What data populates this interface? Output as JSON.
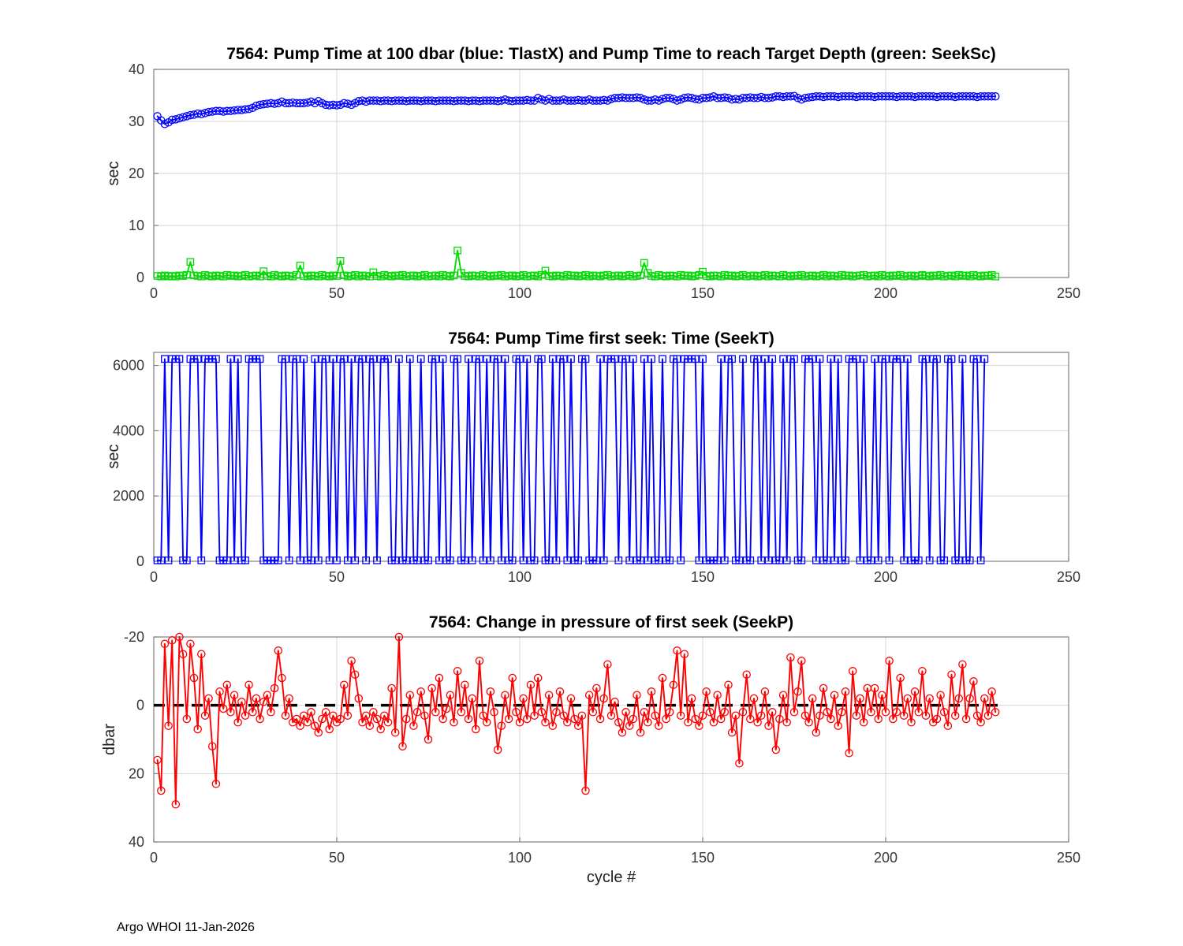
{
  "page": {
    "footer": "Argo WHOI 11-Jan-2026",
    "background": "#ffffff"
  },
  "colors": {
    "grid": "#d6d6d6",
    "axis": "#808080",
    "tick_label": "#383838",
    "title": "#000000",
    "zero_line": "#000000"
  },
  "chart_data": [
    {
      "type": "line",
      "title": "7564:  Pump Time at 100 dbar (blue: TlastX) and Pump Time to reach Target Depth (green: SeekSc)",
      "ylabel": "sec",
      "xlim": [
        0,
        250
      ],
      "ylim": [
        0,
        40
      ],
      "xticks": [
        0,
        50,
        100,
        150,
        200,
        250
      ],
      "yticks": [
        0,
        10,
        20,
        30,
        40
      ],
      "grid": true,
      "series": [
        {
          "name": "TlastX",
          "color": "#0000ff",
          "marker": "circle",
          "x_start": 1,
          "values": [
            31,
            30.2,
            29.5,
            29.8,
            30.3,
            30.4,
            30.6,
            30.8,
            31,
            31.2,
            31.3,
            31.5,
            31.4,
            31.6,
            31.8,
            31.9,
            32,
            32,
            31.9,
            32,
            32,
            32.1,
            32.2,
            32.2,
            32.3,
            32.4,
            32.6,
            33,
            33.2,
            33.3,
            33.4,
            33.5,
            33.4,
            33.5,
            33.8,
            33.5,
            33.5,
            33.6,
            33.5,
            33.5,
            33.5,
            33.6,
            33.8,
            33.5,
            33.9,
            33.5,
            33.2,
            33.1,
            33.2,
            33.1,
            33.2,
            33.5,
            33.4,
            33.2,
            33.5,
            33.9,
            34,
            33.8,
            34,
            34,
            34,
            33.9,
            34,
            34,
            33.9,
            34,
            34,
            34,
            33.9,
            34,
            34,
            34,
            33.9,
            34,
            34,
            34,
            33.9,
            34,
            34,
            34,
            34,
            33.9,
            34,
            34,
            34,
            33.9,
            34,
            34,
            33.9,
            34,
            34,
            34,
            34,
            33.9,
            34,
            34.2,
            34,
            33.9,
            34,
            34,
            34,
            34.1,
            34,
            34,
            34.5,
            34.2,
            34,
            34.3,
            34,
            34,
            34,
            34.2,
            34,
            34,
            34,
            34.1,
            34,
            34,
            34.2,
            34,
            34,
            34,
            34.1,
            34,
            34.3,
            34.5,
            34.5,
            34.6,
            34.5,
            34.5,
            34.5,
            34.6,
            34.5,
            34.2,
            34,
            34,
            34.2,
            34,
            34.3,
            34.5,
            34.5,
            34.3,
            34,
            34.2,
            34.5,
            34.6,
            34.5,
            34.3,
            34.2,
            34.5,
            34.5,
            34.6,
            34.8,
            34.5,
            34.5,
            34.6,
            34.5,
            34.2,
            34.3,
            34.2,
            34.5,
            34.5,
            34.6,
            34.5,
            34.5,
            34.7,
            34.5,
            34.5,
            34.6,
            34.8,
            34.8,
            34.7,
            34.8,
            34.8,
            34.9,
            34.5,
            34.2,
            34.5,
            34.6,
            34.7,
            34.8,
            34.8,
            34.7,
            34.8,
            34.8,
            34.8,
            34.7,
            34.8,
            34.8,
            34.8,
            34.8,
            34.7,
            34.8,
            34.8,
            34.8,
            34.8,
            34.7,
            34.8,
            34.8,
            34.8,
            34.8,
            34.8,
            34.7,
            34.8,
            34.8,
            34.8,
            34.8,
            34.7,
            34.8,
            34.8,
            34.8,
            34.8,
            34.8,
            34.7,
            34.8,
            34.8,
            34.8,
            34.8,
            34.7,
            34.8,
            34.8,
            34.8,
            34.8,
            34.8,
            34.7,
            34.8,
            34.8,
            34.8,
            34.8,
            34.8
          ]
        },
        {
          "name": "SeekSc",
          "color": "#00dd00",
          "marker": "square",
          "x_start": 1,
          "values": [
            0.3,
            0.2,
            0.4,
            0.2,
            0.3,
            0.2,
            0.4,
            0.3,
            0.5,
            3,
            0.4,
            0.3,
            0.2,
            0.5,
            0.3,
            0.2,
            0.4,
            0.3,
            0.2,
            0.5,
            0.3,
            0.4,
            0.2,
            0.3,
            0.5,
            0.2,
            0.3,
            0.4,
            0.2,
            1.2,
            0.3,
            0.2,
            0.5,
            0.3,
            0.2,
            0.4,
            0.3,
            0.2,
            0.5,
            2.3,
            0.3,
            0.2,
            0.4,
            0.3,
            0.2,
            0.5,
            0.3,
            0.2,
            0.4,
            0.3,
            3.2,
            0.4,
            0.2,
            0.3,
            0.5,
            0.2,
            0.4,
            0.3,
            0.2,
            1,
            0.3,
            0.2,
            0.5,
            0.3,
            0.2,
            0.4,
            0.3,
            0.5,
            0.2,
            0.3,
            0.4,
            0.2,
            0.3,
            0.5,
            0.2,
            0.3,
            0.4,
            0.2,
            0.5,
            0.3,
            0.2,
            0.4,
            5.2,
            0.9,
            0.3,
            0.2,
            0.4,
            0.3,
            0.2,
            0.5,
            0.3,
            0.2,
            0.4,
            0.3,
            0.5,
            0.2,
            0.3,
            0.4,
            0.2,
            0.3,
            0.5,
            0.2,
            0.3,
            0.4,
            0.2,
            0.5,
            1.3,
            0.3,
            0.2,
            0.4,
            0.3,
            0.2,
            0.5,
            0.3,
            0.4,
            0.2,
            0.3,
            0.5,
            0.2,
            0.4,
            0.3,
            0.2,
            0.4,
            0.5,
            0.2,
            0.3,
            0.4,
            0.2,
            0.3,
            0.5,
            0.2,
            0.3,
            0.4,
            2.8,
            0.9,
            0.3,
            0.2,
            0.5,
            0.3,
            0.2,
            0.4,
            0.3,
            0.2,
            0.5,
            0.3,
            0.4,
            0.2,
            0.3,
            0.5,
            1.1,
            0.3,
            0.2,
            0.4,
            0.3,
            0.2,
            0.5,
            0.3,
            0.4,
            0.2,
            0.3,
            0.5,
            0.2,
            0.3,
            0.4,
            0.2,
            0.3,
            0.5,
            0.2,
            0.4,
            0.3,
            0.2,
            0.5,
            0.3,
            0.2,
            0.4,
            0.3,
            0.5,
            0.2,
            0.3,
            0.4,
            0.2,
            0.3,
            0.5,
            0.2,
            0.4,
            0.3,
            0.2,
            0.5,
            0.3,
            0.4,
            0.2,
            0.3,
            0.4,
            0.5,
            0.2,
            0.3,
            0.4,
            0.2,
            0.5,
            0.3,
            0.2,
            0.4,
            0.3,
            0.5,
            0.2,
            0.3,
            0.4,
            0.2,
            0.3,
            0.5,
            0.3,
            0.2,
            0.4,
            0.3,
            0.5,
            0.2,
            0.3,
            0.4,
            0.2,
            0.5,
            0.3,
            0.4,
            0.2,
            0.5,
            0.3,
            0.2,
            0.4,
            0.3,
            0.5,
            0.2
          ]
        }
      ]
    },
    {
      "type": "line",
      "title": "7564: Pump Time first seek: Time (SeekT)",
      "ylabel": "sec",
      "xlim": [
        0,
        250
      ],
      "ylim": [
        0,
        6400
      ],
      "xticks": [
        0,
        50,
        100,
        150,
        200,
        250
      ],
      "yticks": [
        0,
        2000,
        4000,
        6000
      ],
      "grid": true,
      "series": [
        {
          "name": "SeekT",
          "color": "#0000ff",
          "marker": "square",
          "x_start": 1,
          "values": [
            30,
            30,
            6200,
            30,
            6200,
            6200,
            6200,
            30,
            30,
            6200,
            6200,
            6200,
            30,
            6200,
            6200,
            6200,
            6200,
            30,
            30,
            30,
            6200,
            30,
            6200,
            30,
            30,
            6200,
            6200,
            6200,
            6200,
            30,
            30,
            30,
            30,
            30,
            6200,
            6200,
            30,
            6200,
            6200,
            30,
            6200,
            30,
            30,
            6200,
            30,
            6200,
            6200,
            30,
            6200,
            30,
            6200,
            6200,
            30,
            6200,
            30,
            6200,
            6200,
            30,
            6200,
            6200,
            30,
            6200,
            6200,
            6200,
            30,
            30,
            6200,
            30,
            30,
            6200,
            30,
            30,
            6200,
            30,
            30,
            6200,
            6200,
            30,
            6200,
            30,
            30,
            6200,
            6200,
            30,
            30,
            6200,
            30,
            6200,
            6200,
            30,
            6200,
            30,
            6200,
            6200,
            30,
            6200,
            30,
            30,
            6200,
            6200,
            30,
            6200,
            30,
            30,
            6200,
            6200,
            30,
            30,
            6200,
            30,
            6200,
            6200,
            30,
            6200,
            30,
            30,
            6200,
            6200,
            30,
            30,
            30,
            6200,
            30,
            6200,
            6200,
            6200,
            30,
            6200,
            6200,
            30,
            6200,
            30,
            30,
            6200,
            30,
            6200,
            30,
            30,
            6200,
            30,
            30,
            6200,
            6200,
            30,
            6200,
            6200,
            6200,
            6200,
            30,
            6200,
            30,
            30,
            30,
            30,
            6200,
            30,
            6200,
            6200,
            30,
            30,
            6200,
            30,
            30,
            6200,
            6200,
            30,
            6200,
            30,
            6200,
            30,
            30,
            6200,
            30,
            6200,
            6200,
            30,
            30,
            6200,
            6200,
            6200,
            30,
            6200,
            30,
            30,
            6200,
            30,
            6200,
            30,
            30,
            6200,
            6200,
            6200,
            30,
            6200,
            30,
            30,
            6200,
            30,
            6200,
            6200,
            30,
            6200,
            6200,
            6200,
            30,
            6200,
            30,
            30,
            30,
            6200,
            6200,
            30,
            6200,
            6200,
            30,
            30,
            6200,
            6200,
            30,
            30,
            6200,
            30,
            30,
            6200,
            6200,
            30,
            6200
          ]
        }
      ]
    },
    {
      "type": "line",
      "title": "7564: Change in pressure of first seek (SeekP)",
      "ylabel": "dbar",
      "xlabel": "cycle #",
      "xlim": [
        0,
        250
      ],
      "ylim": [
        -20,
        40
      ],
      "y_reverse": true,
      "xticks": [
        0,
        50,
        100,
        150,
        200,
        250
      ],
      "yticks": [
        -20,
        0,
        20,
        40
      ],
      "grid": true,
      "zero_line": [
        0,
        231
      ],
      "series": [
        {
          "name": "SeekP",
          "color": "#ff0000",
          "marker": "circle",
          "x_start": 1,
          "values": [
            16,
            25,
            -18,
            6,
            -19,
            29,
            -20,
            -15,
            4,
            -18,
            -8,
            7,
            -15,
            3,
            -2,
            12,
            23,
            -4,
            1,
            -6,
            2,
            -3,
            5,
            -1,
            3,
            -6,
            2,
            -2,
            4,
            -1,
            -3,
            2,
            -5,
            -16,
            -8,
            3,
            -2,
            5,
            4,
            6,
            3,
            5,
            2,
            6,
            8,
            4,
            2,
            7,
            3,
            5,
            4,
            -6,
            3,
            -13,
            -9,
            -2,
            5,
            3,
            6,
            2,
            4,
            7,
            3,
            5,
            -5,
            8,
            -20,
            12,
            4,
            -3,
            6,
            2,
            -4,
            3,
            10,
            -5,
            2,
            -8,
            4,
            1,
            -3,
            5,
            -10,
            2,
            -6,
            4,
            -2,
            7,
            -13,
            3,
            5,
            -4,
            2,
            13,
            6,
            -3,
            4,
            -8,
            2,
            5,
            -2,
            4,
            -6,
            3,
            -8,
            2,
            5,
            -3,
            6,
            2,
            -4,
            3,
            5,
            -2,
            4,
            6,
            3,
            25,
            -3,
            2,
            -5,
            4,
            -2,
            -12,
            3,
            -1,
            5,
            8,
            2,
            6,
            4,
            -3,
            8,
            2,
            5,
            -4,
            3,
            6,
            -8,
            4,
            2,
            -6,
            -16,
            3,
            -15,
            5,
            -2,
            4,
            6,
            3,
            -4,
            2,
            5,
            -3,
            4,
            2,
            -6,
            8,
            3,
            17,
            2,
            -9,
            4,
            -2,
            5,
            3,
            -4,
            6,
            2,
            13,
            4,
            -3,
            5,
            -14,
            2,
            -4,
            -13,
            3,
            5,
            -2,
            8,
            3,
            -5,
            2,
            4,
            -3,
            6,
            2,
            -4,
            14,
            -10,
            3,
            -2,
            5,
            -5,
            2,
            -5,
            4,
            -3,
            2,
            -13,
            4,
            2,
            -8,
            3,
            -2,
            5,
            -4,
            2,
            -10,
            3,
            -2,
            5,
            4,
            -3,
            2,
            6,
            -9,
            3,
            -2,
            -12,
            4,
            -2,
            -7,
            3,
            5,
            -2,
            3,
            -4,
            2
          ]
        }
      ]
    }
  ]
}
